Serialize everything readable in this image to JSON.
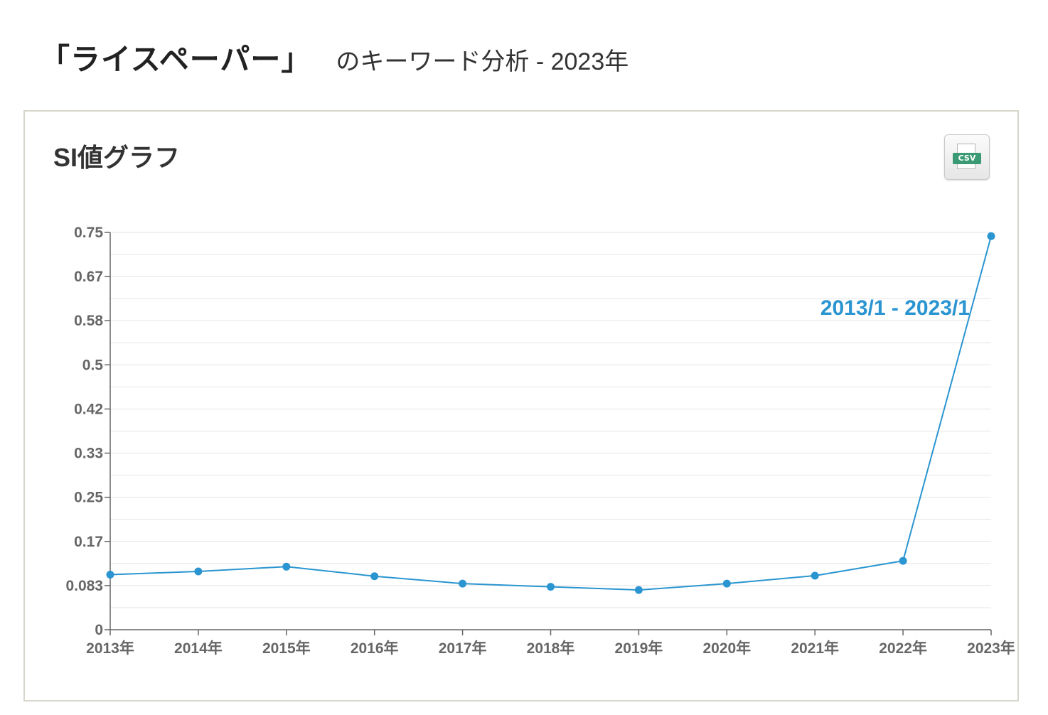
{
  "header": {
    "keyword": "「ライスペーパー」",
    "suffix": "のキーワード分析 - 2023年"
  },
  "panel": {
    "title": "SI値グラフ",
    "csv_button": {
      "label": "CSV",
      "icon": "csv-file-icon"
    }
  },
  "colors": {
    "series": "#2a95d0",
    "grid": "#e4e4e4",
    "axis": "#666666"
  },
  "chart_data": {
    "type": "line",
    "title": "",
    "xlabel": "",
    "ylabel": "",
    "categories": [
      "2013年",
      "2014年",
      "2015年",
      "2016年",
      "2017年",
      "2018年",
      "2019年",
      "2020年",
      "2021年",
      "2022年",
      "2023年"
    ],
    "y_ticks": [
      "0",
      "0.083",
      "0.17",
      "0.25",
      "0.33",
      "0.42",
      "0.5",
      "0.58",
      "0.67",
      "0.75"
    ],
    "ylim": [
      0,
      0.75
    ],
    "grid": true,
    "series": [
      {
        "name": "2013/1 - 2023/1",
        "values": [
          0.104,
          0.11,
          0.119,
          0.101,
          0.087,
          0.081,
          0.075,
          0.087,
          0.102,
          0.13,
          0.743
        ]
      }
    ],
    "annotations": [
      {
        "text": "2013/1 - 2023/1",
        "position": "upper-right near the last segment"
      }
    ]
  }
}
